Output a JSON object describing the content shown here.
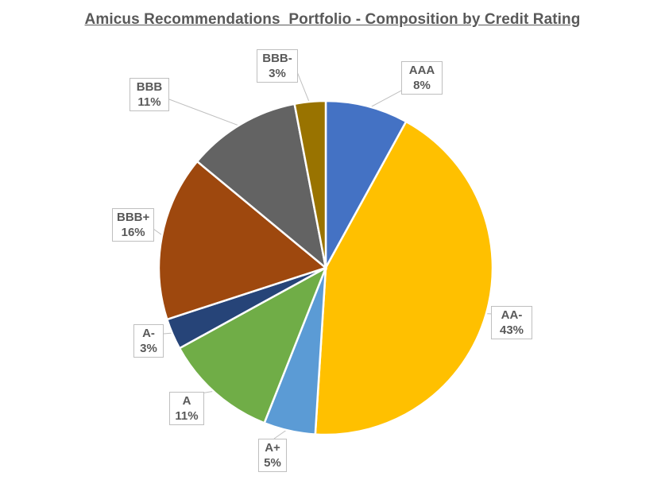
{
  "chart_data": {
    "type": "pie",
    "title": "Amicus Recommendations  Portfolio - Composition by Credit Rating",
    "start_angle_deg": 0,
    "direction": "clockwise",
    "slices": [
      {
        "label": "AAA",
        "value": 8,
        "display": "8%",
        "color": "#4472C4"
      },
      {
        "label": "AA-",
        "value": 43,
        "display": "43%",
        "color": "#FFC000"
      },
      {
        "label": "A+",
        "value": 5,
        "display": "5%",
        "color": "#5B9BD5"
      },
      {
        "label": "A",
        "value": 11,
        "display": "11%",
        "color": "#70AD47"
      },
      {
        "label": "A-",
        "value": 3,
        "display": "3%",
        "color": "#264478"
      },
      {
        "label": "BBB+",
        "value": 16,
        "display": "16%",
        "color": "#9E480E"
      },
      {
        "label": "BBB",
        "value": 11,
        "display": "11%",
        "color": "#636363"
      },
      {
        "label": "BBB-",
        "value": 3,
        "display": "3%",
        "color": "#997300"
      }
    ]
  }
}
